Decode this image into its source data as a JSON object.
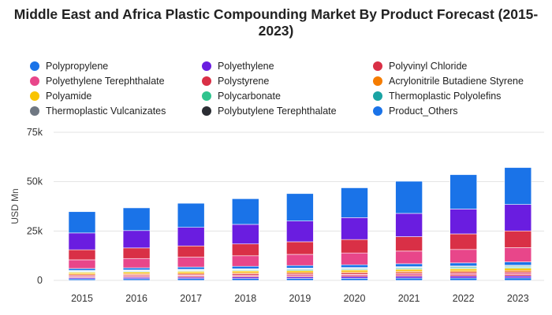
{
  "chart_data": {
    "type": "bar",
    "stacked": true,
    "title": "Middle East and Africa Plastic Compounding Market By Product Forecast (2015-2023)",
    "ylabel": "USD Mn",
    "xlabel": "",
    "ylim": [
      0,
      75000
    ],
    "yticks": [
      0,
      25000,
      50000,
      75000
    ],
    "ytick_labels": [
      "0",
      "25k",
      "50k",
      "75k"
    ],
    "grid": true,
    "legend_position": "top",
    "categories": [
      "2015",
      "2016",
      "2017",
      "2018",
      "2019",
      "2020",
      "2021",
      "2022",
      "2023"
    ],
    "series": [
      {
        "name": "Polypropylene",
        "color": "#1a73e8",
        "values": [
          800,
          850,
          900,
          950,
          1000,
          1050,
          1150,
          1200,
          1250
        ]
      },
      {
        "name": "Polyethylene",
        "color": "#6a1de0",
        "values": [
          600,
          650,
          700,
          750,
          800,
          850,
          900,
          950,
          1000
        ]
      },
      {
        "name": "Polyvinyl Chloride",
        "color": "#d93046",
        "values": [
          500,
          520,
          550,
          580,
          610,
          640,
          680,
          720,
          760
        ]
      },
      {
        "name": "Polyethylene Terephthalate",
        "color": "#e8468a",
        "values": [
          400,
          420,
          450,
          470,
          500,
          520,
          560,
          590,
          620
        ]
      },
      {
        "name": "Polystyrene",
        "color": "#d93046",
        "values": [
          500,
          520,
          550,
          570,
          600,
          630,
          670,
          700,
          740
        ]
      },
      {
        "name": "Acrylonitrile Butadiene Styrene",
        "color": "#f57c00",
        "values": [
          500,
          520,
          550,
          570,
          600,
          630,
          670,
          700,
          740
        ]
      },
      {
        "name": "Polyamide",
        "color": "#f9c400",
        "values": [
          700,
          730,
          770,
          800,
          840,
          880,
          930,
          980,
          1030
        ]
      },
      {
        "name": "Polycarbonate",
        "color": "#2fc48e",
        "values": [
          300,
          320,
          340,
          360,
          380,
          400,
          420,
          440,
          460
        ]
      },
      {
        "name": "Thermoplastic Polyolefins",
        "color": "#1aa3a3",
        "values": [
          300,
          320,
          340,
          360,
          380,
          400,
          420,
          440,
          460
        ]
      },
      {
        "name": "Thermoplastic Vulcanizates",
        "color": "#6f7782",
        "values": [
          200,
          210,
          220,
          230,
          240,
          250,
          270,
          280,
          300
        ]
      },
      {
        "name": "Polybutylene Terephthalate",
        "color": "#2b2d33",
        "values": [
          200,
          210,
          220,
          230,
          240,
          250,
          270,
          280,
          300
        ]
      },
      {
        "name": "Product_Others",
        "color": "#1a73e8",
        "values": [
          1000,
          1080,
          1150,
          1230,
          1310,
          1390,
          1480,
          1560,
          1660
        ]
      },
      {
        "name": "",
        "color": "#e8468a",
        "values": [
          4400,
          4720,
          5010,
          5350,
          5660,
          5990,
          6400,
          6800,
          7220
        ]
      },
      {
        "name": "",
        "color": "#d93046",
        "values": [
          5100,
          5350,
          5700,
          6000,
          6400,
          6800,
          7300,
          7900,
          8500
        ]
      },
      {
        "name": "",
        "color": "#6a1de0",
        "values": [
          8500,
          8800,
          9400,
          9900,
          10500,
          11100,
          11800,
          12600,
          13400
        ]
      },
      {
        "name": "",
        "color": "#1a73e8",
        "values": [
          10800,
          11500,
          12200,
          13000,
          13900,
          15100,
          16300,
          17400,
          18700
        ]
      }
    ]
  }
}
